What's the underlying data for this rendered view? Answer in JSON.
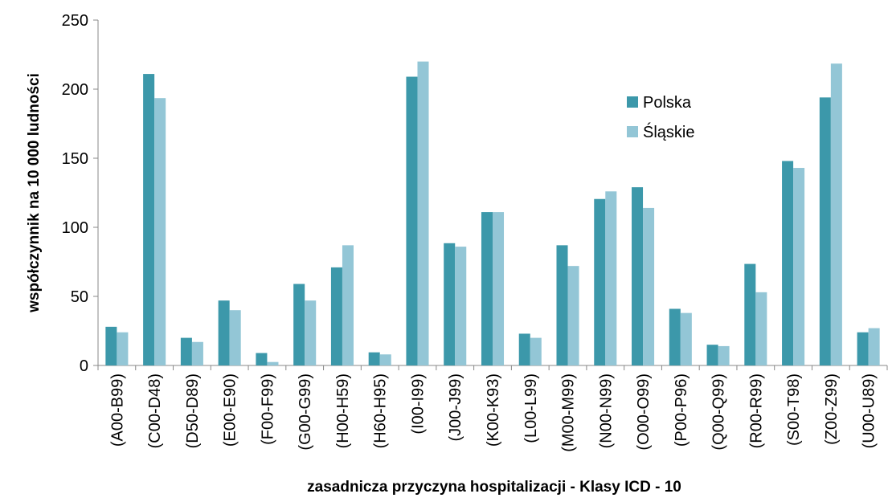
{
  "chart_data": {
    "type": "bar",
    "y_label": "współczynnik na 10 000 ludności",
    "x_label": "zasadnicza przyczyna hospitalizacji -  Klasy ICD - 10",
    "categories": [
      "(A00-B99)",
      "(C00-D48)",
      "(D50-D89)",
      "(E00-E90)",
      "(F00-F99)",
      "(G00-G99)",
      "(H00-H59)",
      "(H60-H95)",
      "(I00-I99)",
      "(J00-J99)",
      "(K00-K93)",
      "(L00-L99)",
      "(M00-M99)",
      "(N00-N99)",
      "(O00-O99)",
      "(P00-P96)",
      "(Q00-Q99)",
      "(R00-R99)",
      "(S00-T98)",
      "(Z00-Z99)",
      "(U00-U89)"
    ],
    "series": [
      {
        "name": "Polska",
        "color": "#3c98aa",
        "values": [
          28,
          211,
          20,
          47,
          9,
          59,
          71,
          9.5,
          209,
          88.5,
          111,
          23,
          87,
          120.5,
          129,
          41,
          15,
          73.5,
          148,
          194,
          24
        ]
      },
      {
        "name": "Śląskie",
        "color": "#93c6d6",
        "values": [
          24,
          193.5,
          17,
          40,
          2.5,
          47,
          87,
          8,
          220,
          86,
          111,
          20,
          72,
          126,
          114,
          38,
          14,
          53,
          143,
          218.5,
          27
        ]
      }
    ],
    "ylim": [
      0,
      250
    ],
    "yticks": [
      0,
      50,
      100,
      150,
      200,
      250
    ],
    "legend": "upper-right"
  }
}
